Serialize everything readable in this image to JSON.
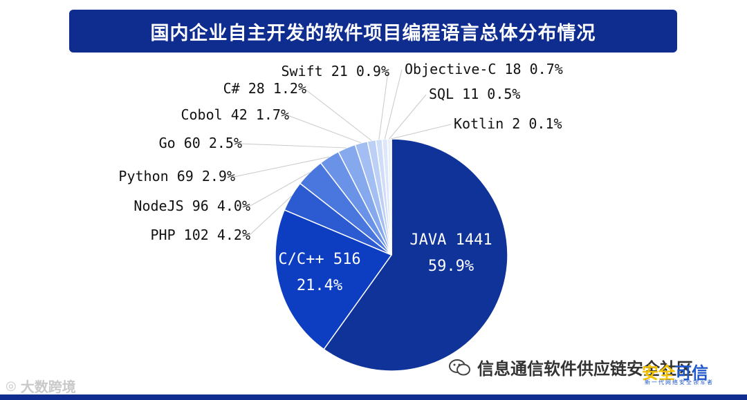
{
  "chart_data": {
    "type": "pie",
    "title": "国内企业自主开发的软件项目编程语言总体分布情况",
    "slices": [
      {
        "name": "JAVA",
        "value": 1441,
        "percent": "59.9%",
        "color": "#0f3399",
        "inside": true
      },
      {
        "name": "C/C++",
        "value": 516,
        "percent": "21.4%",
        "color": "#0d3ec2",
        "inside": true
      },
      {
        "name": "PHP",
        "value": 102,
        "percent": "4.2%",
        "color": "#2c5ad0"
      },
      {
        "name": "NodeJS",
        "value": 96,
        "percent": "4.0%",
        "color": "#4a77dd"
      },
      {
        "name": "Python",
        "value": 69,
        "percent": "2.9%",
        "color": "#6a92e6"
      },
      {
        "name": "Go",
        "value": 60,
        "percent": "2.5%",
        "color": "#86a8ec"
      },
      {
        "name": "Cobol",
        "value": 42,
        "percent": "1.7%",
        "color": "#a3bef2"
      },
      {
        "name": "C#",
        "value": 28,
        "percent": "1.2%",
        "color": "#bccff5"
      },
      {
        "name": "Swift",
        "value": 21,
        "percent": "0.9%",
        "color": "#d0ddf8"
      },
      {
        "name": "Objective-C",
        "value": 18,
        "percent": "0.7%",
        "color": "#dde6fa"
      },
      {
        "name": "SQL",
        "value": 11,
        "percent": "0.5%",
        "color": "#e8eefc"
      },
      {
        "name": "Kotlin",
        "value": 2,
        "percent": "0.1%",
        "color": "#f0f4fd"
      }
    ]
  },
  "watermarks": {
    "left_icon": "camera-icon",
    "left_text": "大数跨境",
    "right_icon": "wechat-icon",
    "right_text": "信息通信软件供应链安全社区",
    "brand_main_a": "安全",
    "brand_main_b": "可信",
    "brand_sub": "新一代网络安全领军者"
  },
  "colors": {
    "title_bar": "#0f2d8f",
    "leader_line": "#c8c8c8"
  }
}
